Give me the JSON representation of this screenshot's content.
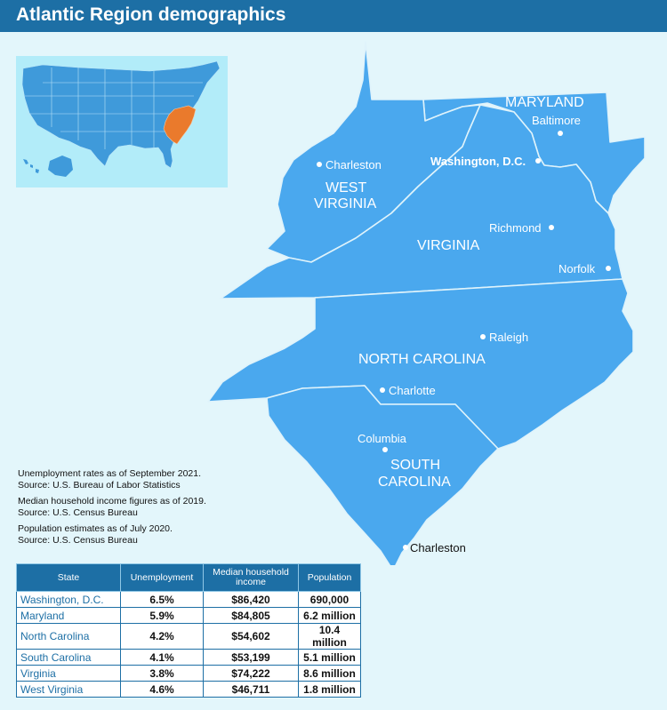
{
  "title": "Atlantic Region demographics",
  "colors": {
    "title_bar": "#1d6fa5",
    "background": "#e3f6fb",
    "region_fill": "#4aa8ee",
    "inset_us_fill": "#3f9ada",
    "inset_highlight": "#ea7a2c"
  },
  "map": {
    "states": [
      "MARYLAND",
      "WEST",
      "VIRGINIA",
      "VIRGINIA",
      "NORTH CAROLINA",
      "SOUTH",
      "CAROLINA"
    ],
    "cities": {
      "baltimore": "Baltimore",
      "charleston_wv": "Charleston",
      "washington": "Washington, D.C.",
      "richmond": "Richmond",
      "norfolk": "Norfolk",
      "raleigh": "Raleigh",
      "charlotte": "Charlotte",
      "columbia": "Columbia",
      "charleston_sc": "Charleston"
    }
  },
  "notes": [
    [
      "Unemployment rates as of September 2021.",
      "Source: U.S. Bureau of Labor Statistics"
    ],
    [
      "Median household income figures as of 2019.",
      "Source: U.S. Census Bureau"
    ],
    [
      "Population estimates as of July 2020.",
      "Source: U.S. Census Bureau"
    ]
  ],
  "table": {
    "headers": [
      "State",
      "Unemployment",
      "Median household income",
      "Population"
    ],
    "rows": [
      [
        "Washington, D.C.",
        "6.5%",
        "$86,420",
        "690,000"
      ],
      [
        "Maryland",
        "5.9%",
        "$84,805",
        "6.2 million"
      ],
      [
        "North Carolina",
        "4.2%",
        "$54,602",
        "10.4 million"
      ],
      [
        "South Carolina",
        "4.1%",
        "$53,199",
        "5.1 million"
      ],
      [
        "Virginia",
        "3.8%",
        "$74,222",
        "8.6 million"
      ],
      [
        "West Virginia",
        "4.6%",
        "$46,711",
        "1.8 million"
      ]
    ]
  }
}
